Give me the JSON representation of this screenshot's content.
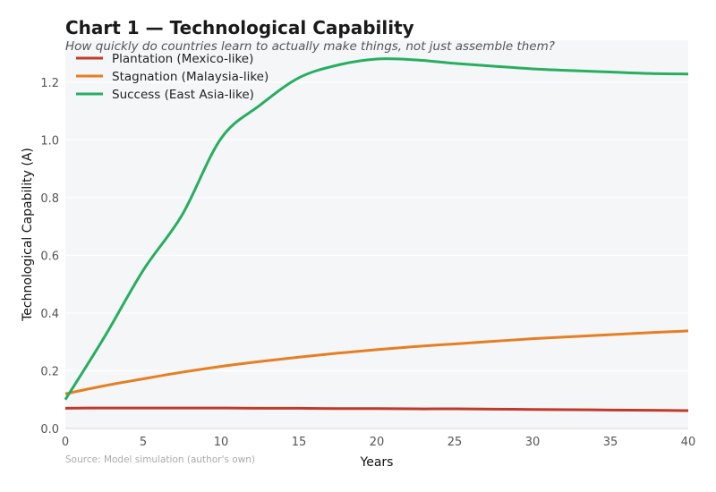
{
  "chart_data": {
    "type": "line",
    "title": "Chart 1 — Technological Capability",
    "subtitle": "How quickly do countries learn to actually make things, not just assemble them?",
    "xlabel": "Years",
    "ylabel": "Technological Capability (A)",
    "source": "Source: Model simulation (author's own)",
    "xlim": [
      0,
      40
    ],
    "ylim": [
      0,
      1.345
    ],
    "xticks": [
      0,
      5,
      10,
      15,
      20,
      25,
      30,
      35,
      40
    ],
    "yticks": [
      "0.0",
      "0.2",
      "0.4",
      "0.6",
      "0.8",
      "1.0",
      "1.2"
    ],
    "grid": true,
    "legend_position": "top-left",
    "x": [
      0,
      2.5,
      5,
      7.5,
      10,
      12.5,
      15,
      17.5,
      20,
      22.5,
      25,
      27.5,
      30,
      32.5,
      35,
      37.5,
      40
    ],
    "series": [
      {
        "name": "Plantation (Mexico-like)",
        "color": "#c0392b",
        "values": [
          0.07,
          0.071,
          0.071,
          0.071,
          0.071,
          0.07,
          0.07,
          0.069,
          0.069,
          0.068,
          0.068,
          0.067,
          0.066,
          0.065,
          0.064,
          0.063,
          0.062
        ]
      },
      {
        "name": "Stagnation (Malaysia-like)",
        "color": "#e67e22",
        "values": [
          0.12,
          0.148,
          0.172,
          0.195,
          0.215,
          0.232,
          0.247,
          0.261,
          0.273,
          0.284,
          0.293,
          0.302,
          0.311,
          0.318,
          0.325,
          0.332,
          0.338
        ]
      },
      {
        "name": "Success (East Asia-like)",
        "color": "#27ae60",
        "values": [
          0.1,
          0.316,
          0.548,
          0.74,
          1.005,
          1.12,
          1.215,
          1.259,
          1.28,
          1.277,
          1.265,
          1.255,
          1.246,
          1.24,
          1.235,
          1.23,
          1.228
        ]
      }
    ]
  }
}
